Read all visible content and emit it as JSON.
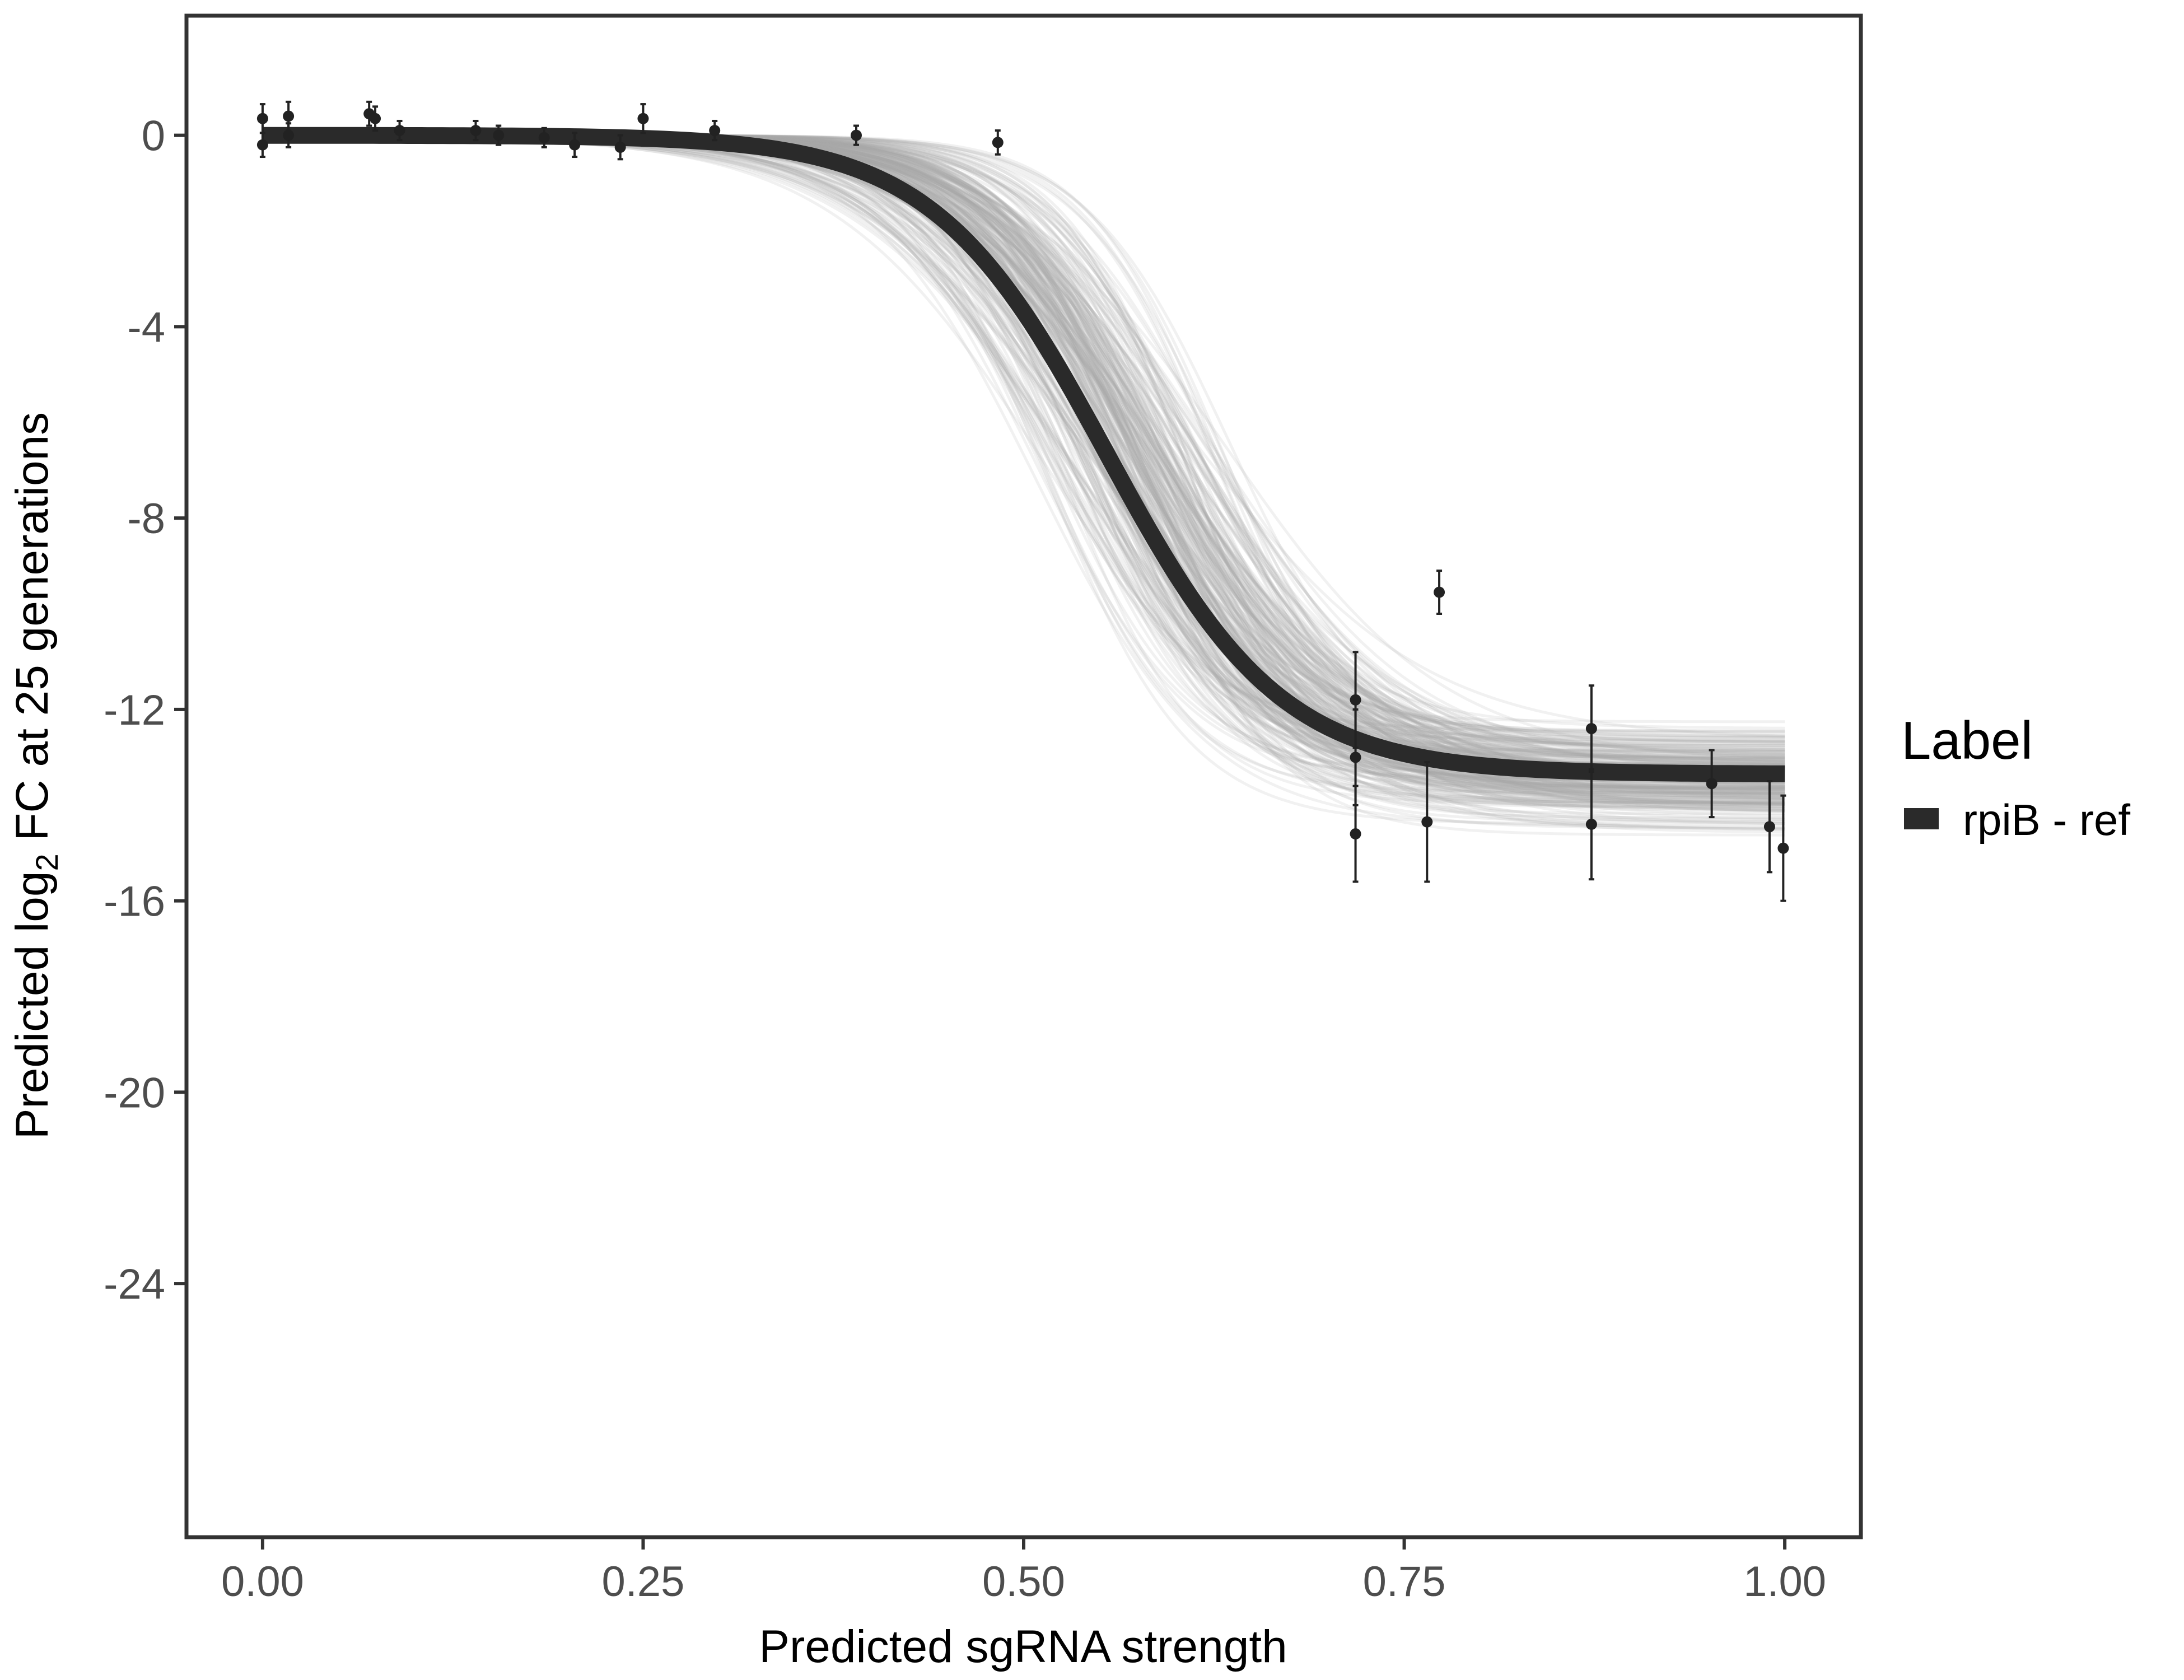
{
  "chart_data": {
    "type": "line",
    "title": "",
    "xlabel": "Predicted sgRNA strength",
    "ylabel": {
      "prefix": "Predicted  log",
      "subscript": "2",
      "suffix": " FC at 25 generations"
    },
    "xlim": [
      -0.05,
      1.05
    ],
    "ylim": [
      -29.3,
      2.5
    ],
    "x_ticks": [
      0.0,
      0.25,
      0.5,
      0.75,
      1.0
    ],
    "x_tick_labels": [
      "0.00",
      "0.25",
      "0.50",
      "0.75",
      "1.00"
    ],
    "y_ticks": [
      0,
      -4,
      -8,
      -12,
      -16,
      -20,
      -24
    ],
    "y_tick_labels": [
      "0",
      "-4",
      "-8",
      "-12",
      "-16",
      "-20",
      "-24"
    ],
    "grid": false,
    "legend": {
      "title": "Label",
      "position": "right",
      "entries": [
        {
          "label": "rpiB - ref",
          "color": "#2a2a2a"
        }
      ]
    },
    "fit_curve": {
      "name": "rpiB - ref",
      "model": "logistic",
      "upper": 0.0,
      "lower": -13.35,
      "midpoint": 0.555,
      "slope": 17.5,
      "x_range": [
        0.0,
        1.0
      ],
      "color": "#2a2a2a"
    },
    "posterior_band": {
      "description": "posterior draws of logistic fit",
      "midpoint_range": [
        0.5,
        0.64
      ],
      "lower_range": [
        -14.7,
        -12.2
      ],
      "slope_range": [
        13,
        24
      ],
      "color": "#a6a6a6"
    },
    "points": [
      {
        "x": 0.0,
        "y": 0.35,
        "err": 0.3
      },
      {
        "x": 0.0,
        "y": -0.2,
        "err": 0.25
      },
      {
        "x": 0.017,
        "y": 0.4,
        "err": 0.3
      },
      {
        "x": 0.017,
        "y": 0.0,
        "err": 0.25
      },
      {
        "x": 0.07,
        "y": 0.45,
        "err": 0.25
      },
      {
        "x": 0.074,
        "y": 0.35,
        "err": 0.25
      },
      {
        "x": 0.09,
        "y": 0.1,
        "err": 0.2
      },
      {
        "x": 0.14,
        "y": 0.1,
        "err": 0.2
      },
      {
        "x": 0.155,
        "y": 0.0,
        "err": 0.2
      },
      {
        "x": 0.185,
        "y": -0.05,
        "err": 0.2
      },
      {
        "x": 0.205,
        "y": -0.2,
        "err": 0.25
      },
      {
        "x": 0.235,
        "y": -0.25,
        "err": 0.25
      },
      {
        "x": 0.25,
        "y": 0.35,
        "err": 0.3
      },
      {
        "x": 0.297,
        "y": 0.1,
        "err": 0.2
      },
      {
        "x": 0.39,
        "y": 0.0,
        "err": 0.2
      },
      {
        "x": 0.483,
        "y": -0.15,
        "err": 0.25
      },
      {
        "x": 0.718,
        "y": -11.8,
        "err": 1.0
      },
      {
        "x": 0.718,
        "y": -13.0,
        "err": 1.0
      },
      {
        "x": 0.718,
        "y": -14.6,
        "err": 1.0
      },
      {
        "x": 0.765,
        "y": -14.35,
        "err": 1.25
      },
      {
        "x": 0.773,
        "y": -9.55,
        "err": 0.45
      },
      {
        "x": 0.873,
        "y": -12.4,
        "err": 0.9
      },
      {
        "x": 0.873,
        "y": -14.4,
        "err": 1.15
      },
      {
        "x": 0.952,
        "y": -13.55,
        "err": 0.7
      },
      {
        "x": 0.99,
        "y": -14.45,
        "err": 0.95
      },
      {
        "x": 0.999,
        "y": -14.9,
        "err": 1.1
      }
    ]
  }
}
